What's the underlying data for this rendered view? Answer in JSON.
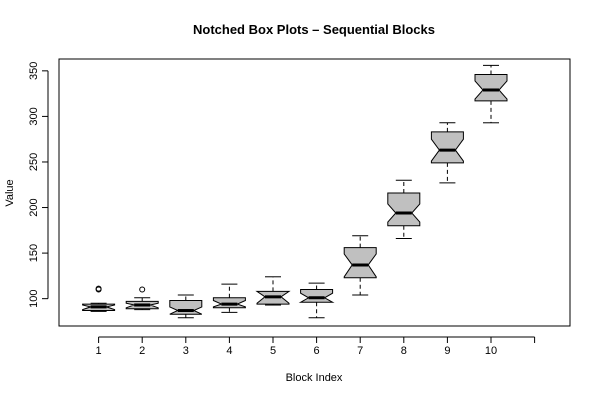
{
  "chart_data": {
    "type": "boxplot",
    "title": "Notched Box Plots – Sequential Blocks",
    "xlabel": "Block Index",
    "ylabel": "Value",
    "ylim": [
      70,
      363
    ],
    "xlim": [
      0,
      11
    ],
    "y_ticks": [
      100,
      150,
      200,
      250,
      300,
      350
    ],
    "box_fill": "#c0c0c0",
    "boxes": [
      {
        "label": "1",
        "whisker_low": 86,
        "q1": 87,
        "median": 91,
        "q3": 94,
        "whisker_high": 95,
        "notch_low": 88,
        "notch_high": 93,
        "outliers": [
          110,
          111
        ]
      },
      {
        "label": "2",
        "whisker_low": 88,
        "q1": 89,
        "median": 93,
        "q3": 97,
        "whisker_high": 101,
        "notch_low": 90,
        "notch_high": 95,
        "outliers": [
          110
        ]
      },
      {
        "label": "3",
        "whisker_low": 79,
        "q1": 83,
        "median": 87,
        "q3": 98,
        "whisker_high": 104,
        "notch_low": 83,
        "notch_high": 91,
        "outliers": []
      },
      {
        "label": "4",
        "whisker_low": 85,
        "q1": 90,
        "median": 94,
        "q3": 101,
        "whisker_high": 116,
        "notch_low": 91,
        "notch_high": 98,
        "outliers": []
      },
      {
        "label": "5",
        "whisker_low": 93,
        "q1": 94,
        "median": 102,
        "q3": 108,
        "whisker_high": 124,
        "notch_low": 95,
        "notch_high": 108,
        "outliers": []
      },
      {
        "label": "6",
        "whisker_low": 79,
        "q1": 96,
        "median": 101,
        "q3": 110,
        "whisker_high": 117,
        "notch_low": 96,
        "notch_high": 106,
        "outliers": []
      },
      {
        "label": "7",
        "whisker_low": 104,
        "q1": 123,
        "median": 137,
        "q3": 156,
        "whisker_high": 169,
        "notch_low": 124,
        "notch_high": 149,
        "outliers": []
      },
      {
        "label": "8",
        "whisker_low": 166,
        "q1": 180,
        "median": 194,
        "q3": 216,
        "whisker_high": 230,
        "notch_low": 184,
        "notch_high": 204,
        "outliers": []
      },
      {
        "label": "9",
        "whisker_low": 227,
        "q1": 249,
        "median": 263,
        "q3": 283,
        "whisker_high": 293,
        "notch_low": 251,
        "notch_high": 275,
        "outliers": []
      },
      {
        "label": "10",
        "whisker_low": 293,
        "q1": 317,
        "median": 329,
        "q3": 346,
        "whisker_high": 356,
        "notch_low": 319,
        "notch_high": 339,
        "outliers": []
      }
    ]
  }
}
